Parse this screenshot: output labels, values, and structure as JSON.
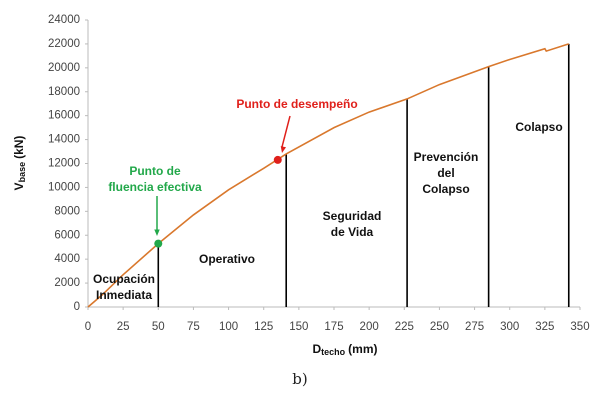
{
  "chart_data": {
    "type": "line",
    "x_label": {
      "main": "D",
      "sub": "techo",
      "unit": "(mm)"
    },
    "y_label": {
      "main": "V",
      "sub": "base",
      "unit": "(kN)"
    },
    "caption": "b)",
    "series": [
      {
        "color": "#d9782d",
        "x": [
          0,
          10,
          25,
          50,
          75,
          100,
          125,
          141,
          175,
          200,
          227,
          250,
          285,
          300,
          325,
          326,
          342
        ],
        "values": [
          0,
          1000,
          2700,
          5300,
          7700,
          9800,
          11600,
          12800,
          15000,
          16300,
          17400,
          18600,
          20100,
          20700,
          21600,
          21400,
          22000
        ]
      }
    ],
    "limits": [
      {
        "x": 50,
        "y": 5300
      },
      {
        "x": 141,
        "y": 12800
      },
      {
        "x": 227,
        "y": 17400
      },
      {
        "x": 285,
        "y": 20100
      },
      {
        "x": 342,
        "y": 22000
      }
    ],
    "points": [
      {
        "x": 50,
        "y": 5300,
        "color": "#22a84a",
        "label": [
          "Punto de",
          "fluencia efectiva"
        ]
      },
      {
        "x": 135,
        "y": 12300,
        "color": "#e0201b",
        "label": [
          "Punto de desempeño"
        ]
      }
    ],
    "zones": [
      [
        "Ocupación",
        "Inmediata"
      ],
      [
        "Operativo"
      ],
      [
        "Seguridad",
        "de Vida"
      ],
      [
        "Prevención",
        "del",
        "Colapso"
      ],
      [
        "Colapso"
      ]
    ],
    "xlim": [
      0,
      350
    ],
    "xticks": [
      0,
      25,
      50,
      75,
      100,
      125,
      150,
      175,
      200,
      225,
      250,
      275,
      300,
      325,
      350
    ],
    "ylim": [
      0,
      24000
    ],
    "yticks": [
      0,
      2000,
      4000,
      6000,
      8000,
      10000,
      12000,
      14000,
      16000,
      18000,
      20000,
      22000,
      24000
    ]
  }
}
